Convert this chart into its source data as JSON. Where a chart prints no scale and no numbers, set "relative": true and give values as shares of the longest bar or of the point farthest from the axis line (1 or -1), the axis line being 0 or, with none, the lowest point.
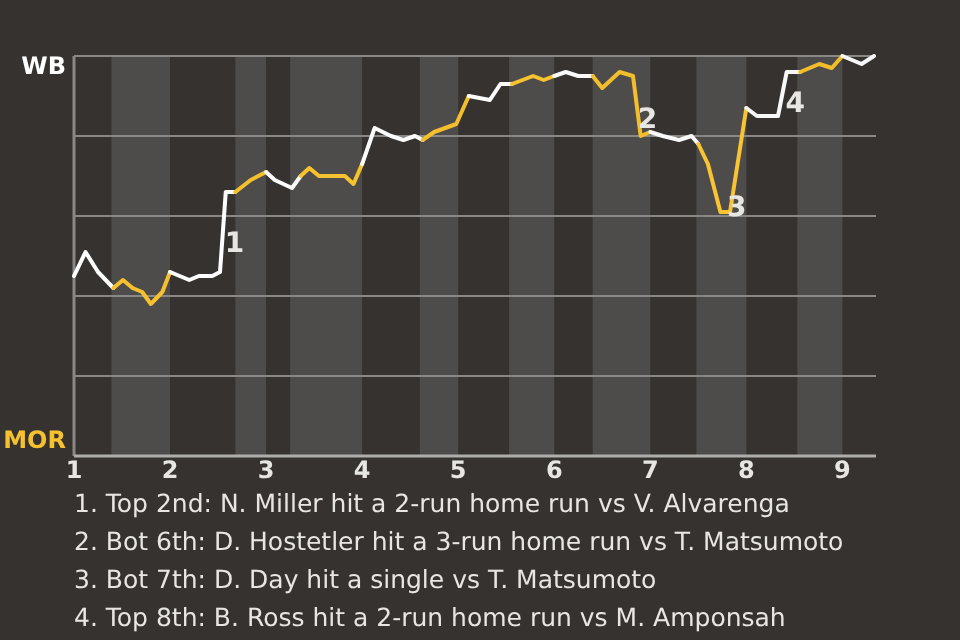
{
  "chart_data": {
    "type": "line",
    "relative": true,
    "series": [
      {
        "color": "#ffffff",
        "x": [
          1.0,
          1.12,
          1.25,
          1.41
        ],
        "values": [
          0.45,
          0.51,
          0.46,
          0.42
        ]
      },
      {
        "color": "#f6c12f",
        "x": [
          1.41,
          1.51,
          1.61,
          1.71,
          1.8,
          1.92,
          2.0
        ],
        "values": [
          0.42,
          0.44,
          0.42,
          0.41,
          0.38,
          0.41,
          0.46
        ]
      },
      {
        "color": "#fefefe",
        "x": [
          2.0,
          2.2,
          2.3,
          2.44,
          2.52,
          2.58,
          2.68
        ],
        "values": [
          0.46,
          0.44,
          0.45,
          0.45,
          0.46,
          0.66,
          0.66
        ]
      },
      {
        "color": "#f5c02e",
        "x": [
          2.68,
          2.84,
          3.0
        ],
        "values": [
          0.66,
          0.69,
          0.71
        ]
      },
      {
        "color": "#fdfdfd",
        "x": [
          3.0,
          3.09,
          3.27,
          3.36
        ],
        "values": [
          0.71,
          0.69,
          0.67,
          0.7
        ]
      },
      {
        "color": "#f7c230",
        "x": [
          3.36,
          3.45,
          3.55,
          3.82,
          3.91,
          4.0
        ],
        "values": [
          0.7,
          0.72,
          0.7,
          0.7,
          0.68,
          0.73
        ]
      },
      {
        "color": "#fcfcfc",
        "x": [
          4.0,
          4.13,
          4.3,
          4.43,
          4.55,
          4.63
        ],
        "values": [
          0.73,
          0.82,
          0.8,
          0.79,
          0.8,
          0.79
        ]
      },
      {
        "color": "#f4bf2d",
        "x": [
          4.63,
          4.75,
          4.98,
          5.11
        ],
        "values": [
          0.79,
          0.81,
          0.83,
          0.9
        ]
      },
      {
        "color": "#fbfbfb",
        "x": [
          5.11,
          5.33,
          5.44,
          5.56
        ],
        "values": [
          0.9,
          0.89,
          0.93,
          0.93
        ]
      },
      {
        "color": "#f8c331",
        "x": [
          5.56,
          5.78,
          5.89,
          6.0
        ],
        "values": [
          0.93,
          0.95,
          0.94,
          0.95
        ]
      },
      {
        "color": "#fafafa",
        "x": [
          6.0,
          6.12,
          6.25,
          6.4
        ],
        "values": [
          0.95,
          0.96,
          0.95,
          0.95
        ]
      },
      {
        "color": "#f3be2c",
        "x": [
          6.4,
          6.5,
          6.68,
          6.82,
          6.9,
          7.0
        ],
        "values": [
          0.95,
          0.92,
          0.96,
          0.95,
          0.8,
          0.81
        ]
      },
      {
        "color": "#f9f9f9",
        "x": [
          7.0,
          7.13,
          7.3,
          7.43,
          7.5
        ],
        "values": [
          0.81,
          0.8,
          0.79,
          0.8,
          0.78
        ]
      },
      {
        "color": "#f9c432",
        "x": [
          7.5,
          7.6,
          7.73,
          7.83,
          8.0
        ],
        "values": [
          0.78,
          0.73,
          0.61,
          0.61,
          0.87
        ]
      },
      {
        "color": "#f8f8f8",
        "x": [
          8.0,
          8.11,
          8.33,
          8.42,
          8.56
        ],
        "values": [
          0.87,
          0.85,
          0.85,
          0.96,
          0.96
        ]
      },
      {
        "color": "#f2bd2b",
        "x": [
          8.56,
          8.76,
          8.89,
          9.0
        ],
        "values": [
          0.96,
          0.98,
          0.97,
          1
        ]
      },
      {
        "color": "#f7f7f7",
        "x": [
          9.0,
          9.2,
          9.33
        ],
        "values": [
          1,
          0.98,
          1
        ]
      }
    ],
    "xlim": [
      1,
      9.35
    ],
    "xticks": [
      1,
      2,
      3,
      4,
      5,
      6,
      7,
      8,
      9
    ],
    "grid": "y",
    "bands": [
      {
        "axis": "x",
        "from": 1.39,
        "to": 2.0,
        "color": "#4e4c4a"
      },
      {
        "axis": "x",
        "from": 2.68,
        "to": 3.0,
        "color": "#4e4c4a"
      },
      {
        "axis": "x",
        "from": 3.25,
        "to": 4.0,
        "color": "#4e4c4a"
      },
      {
        "axis": "x",
        "from": 4.6,
        "to": 5.0,
        "color": "#4e4c4a"
      },
      {
        "axis": "x",
        "from": 5.53,
        "to": 6.0,
        "color": "#4e4c4a"
      },
      {
        "axis": "x",
        "from": 6.4,
        "to": 7.0,
        "color": "#4e4c4a"
      },
      {
        "axis": "x",
        "from": 7.48,
        "to": 8.0,
        "color": "#4e4c4a"
      },
      {
        "axis": "x",
        "from": 8.53,
        "to": 9.0,
        "color": "#4e4c4a"
      }
    ],
    "annotations": [
      "WB",
      "MOR",
      {
        "text": "1",
        "x": 2.67,
        "y": 0.53
      },
      {
        "text": "2",
        "x": 6.97,
        "y": 0.84
      },
      {
        "text": "3",
        "x": 7.9,
        "y": 0.62
      },
      {
        "text": "4",
        "x": 8.51,
        "y": 0.88
      },
      "1. Top 2nd: N. Miller hit a 2-run home run vs V. Alvarenga",
      "2. Bot 6th: D. Hostetler hit a 3-run home run vs T. Matsumoto",
      "3. Bot 7th: D. Day hit a single vs T. Matsumoto",
      "4. Top 8th: B. Ross hit a 2-run home run vs M. Amponsah"
    ]
  }
}
